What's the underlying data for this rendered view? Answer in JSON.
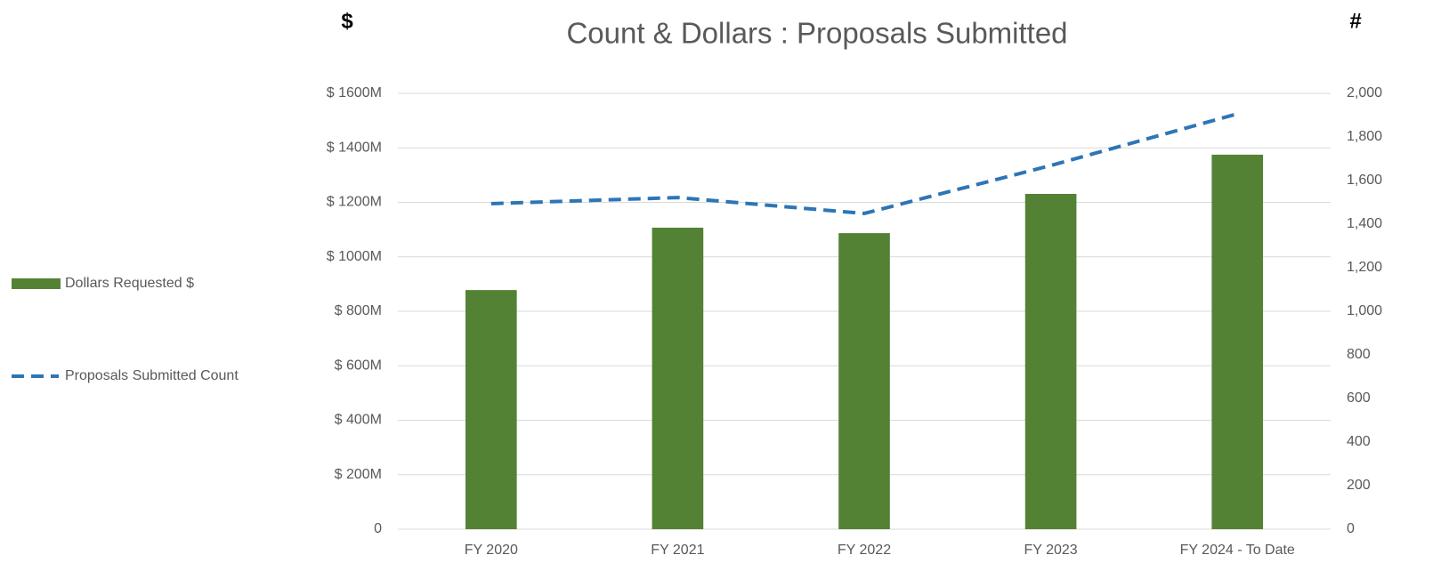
{
  "chart_data": {
    "type": "bar-line",
    "title": "Count & Dollars : Proposals Submitted",
    "y_label": "$",
    "y2_label": "#",
    "categories": [
      "FY 2020",
      "FY 2021",
      "FY 2022",
      "FY 2023",
      "FY 2024 - To Date"
    ],
    "series": [
      {
        "name": "Dollars Requested $",
        "type": "bar",
        "color": "#548235",
        "values": [
          878,
          1107,
          1087,
          1231,
          1375
        ]
      },
      {
        "name": "Proposals Submitted Count",
        "type": "line",
        "dashed": true,
        "axis": "y2",
        "color": "#2e75b6",
        "values": [
          1494,
          1522,
          1449,
          1669,
          1906
        ]
      }
    ],
    "ylim": [
      0,
      1600
    ],
    "yticks": [
      0,
      {
        "value": 200,
        "label": "$ 200M"
      },
      {
        "value": 400,
        "label": "$ 400M"
      },
      {
        "value": 600,
        "label": "$ 600M"
      },
      {
        "value": 800,
        "label": "$ 800M"
      },
      {
        "value": 1000,
        "label": "$ 1000M"
      },
      {
        "value": 1200,
        "label": "$ 1200M"
      },
      {
        "value": 1400,
        "label": "$ 1400M"
      },
      {
        "value": 1600,
        "label": "$ 1600M"
      }
    ],
    "y2lim": [
      0,
      2000
    ],
    "y2ticks": [
      0,
      200,
      400,
      600,
      800,
      {
        "value": 1000,
        "label": "1,000"
      },
      {
        "value": 1200,
        "label": "1,200"
      },
      {
        "value": 1400,
        "label": "1,400"
      },
      {
        "value": 1600,
        "label": "1,600"
      },
      {
        "value": 1800,
        "label": "1,800"
      },
      {
        "value": 2000,
        "label": "2,000"
      }
    ],
    "grid": true,
    "legend": "left"
  }
}
